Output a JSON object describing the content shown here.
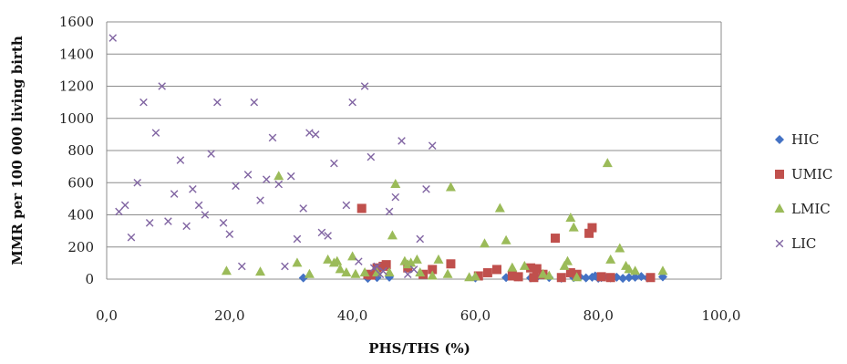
{
  "chart_data": {
    "type": "scatter",
    "title": "",
    "xlabel": "PHS/THS (%)",
    "ylabel": "MMR per 100 000 living birth",
    "xlim": [
      0,
      100
    ],
    "ylim": [
      0,
      1600
    ],
    "xticks": [
      "0,0",
      "20,0",
      "40,0",
      "60,0",
      "80,0",
      "100,0"
    ],
    "yticks": [
      "0",
      "200",
      "400",
      "600",
      "800",
      "1000",
      "1200",
      "1400",
      "1600"
    ],
    "grid": "horizontal",
    "legend_position": "right",
    "series": [
      {
        "name": "HIC",
        "color": "#4472C4",
        "marker": "diamond",
        "points": [
          [
            32,
            8
          ],
          [
            42.5,
            5
          ],
          [
            44,
            10
          ],
          [
            46,
            12
          ],
          [
            60,
            8
          ],
          [
            65,
            10
          ],
          [
            67,
            15
          ],
          [
            69,
            8
          ],
          [
            70,
            12
          ],
          [
            72,
            10
          ],
          [
            74,
            6
          ],
          [
            76,
            10
          ],
          [
            77,
            15
          ],
          [
            78,
            8
          ],
          [
            79,
            12
          ],
          [
            79.5,
            20
          ],
          [
            80,
            6
          ],
          [
            80.5,
            10
          ],
          [
            81,
            14
          ],
          [
            82,
            8
          ],
          [
            83,
            12
          ],
          [
            84,
            5
          ],
          [
            85,
            10
          ],
          [
            86,
            12
          ],
          [
            87,
            16
          ],
          [
            88,
            8
          ],
          [
            90.5,
            14
          ]
        ]
      },
      {
        "name": "UMIC",
        "color": "#C0504D",
        "marker": "square",
        "points": [
          [
            41.5,
            440
          ],
          [
            42.5,
            30
          ],
          [
            43,
            25
          ],
          [
            44,
            70
          ],
          [
            45,
            80
          ],
          [
            45.5,
            90
          ],
          [
            49,
            70
          ],
          [
            51.5,
            30
          ],
          [
            53,
            60
          ],
          [
            56,
            95
          ],
          [
            60.5,
            20
          ],
          [
            62,
            40
          ],
          [
            63.5,
            60
          ],
          [
            66,
            20
          ],
          [
            67,
            15
          ],
          [
            69,
            70
          ],
          [
            69.5,
            10
          ],
          [
            70,
            65
          ],
          [
            71,
            30
          ],
          [
            73,
            255
          ],
          [
            74,
            10
          ],
          [
            75.5,
            40
          ],
          [
            76.5,
            30
          ],
          [
            78.5,
            285
          ],
          [
            79,
            320
          ],
          [
            80.5,
            15
          ],
          [
            82,
            10
          ],
          [
            88.5,
            10
          ]
        ]
      },
      {
        "name": "LMIC",
        "color": "#9BBB59",
        "marker": "triangle",
        "points": [
          [
            19.5,
            50
          ],
          [
            25,
            45
          ],
          [
            28,
            640
          ],
          [
            31,
            100
          ],
          [
            33,
            30
          ],
          [
            36,
            120
          ],
          [
            37,
            100
          ],
          [
            37.5,
            110
          ],
          [
            38,
            60
          ],
          [
            39,
            40
          ],
          [
            40,
            140
          ],
          [
            40.5,
            30
          ],
          [
            42,
            40
          ],
          [
            44,
            40
          ],
          [
            46,
            40
          ],
          [
            46.5,
            270
          ],
          [
            47,
            590
          ],
          [
            48.5,
            110
          ],
          [
            49,
            90
          ],
          [
            49.5,
            100
          ],
          [
            50.5,
            120
          ],
          [
            51,
            40
          ],
          [
            53,
            20
          ],
          [
            54,
            120
          ],
          [
            55.5,
            30
          ],
          [
            56,
            570
          ],
          [
            59,
            10
          ],
          [
            60,
            15
          ],
          [
            61.5,
            220
          ],
          [
            64,
            440
          ],
          [
            65,
            240
          ],
          [
            66,
            70
          ],
          [
            68,
            80
          ],
          [
            71,
            30
          ],
          [
            72,
            20
          ],
          [
            74.5,
            80
          ],
          [
            75,
            110
          ],
          [
            75.5,
            380
          ],
          [
            76,
            320
          ],
          [
            76.5,
            10
          ],
          [
            81.5,
            720
          ],
          [
            82,
            120
          ],
          [
            83.5,
            190
          ],
          [
            84.5,
            80
          ],
          [
            85,
            60
          ],
          [
            86,
            50
          ],
          [
            90.5,
            50
          ]
        ]
      },
      {
        "name": "LIC",
        "color": "#8064A2",
        "marker": "x",
        "points": [
          [
            1,
            1500
          ],
          [
            2,
            420
          ],
          [
            3,
            460
          ],
          [
            4,
            260
          ],
          [
            5,
            600
          ],
          [
            6,
            1100
          ],
          [
            7,
            350
          ],
          [
            8,
            910
          ],
          [
            9,
            1200
          ],
          [
            10,
            360
          ],
          [
            11,
            530
          ],
          [
            12,
            740
          ],
          [
            13,
            330
          ],
          [
            14,
            560
          ],
          [
            15,
            460
          ],
          [
            16,
            400
          ],
          [
            17,
            780
          ],
          [
            18,
            1100
          ],
          [
            19,
            350
          ],
          [
            20,
            280
          ],
          [
            21,
            580
          ],
          [
            22,
            80
          ],
          [
            23,
            650
          ],
          [
            24,
            1100
          ],
          [
            25,
            490
          ],
          [
            26,
            620
          ],
          [
            27,
            880
          ],
          [
            28,
            590
          ],
          [
            29,
            80
          ],
          [
            30,
            640
          ],
          [
            31,
            250
          ],
          [
            32,
            440
          ],
          [
            33,
            910
          ],
          [
            34,
            900
          ],
          [
            35,
            290
          ],
          [
            36,
            270
          ],
          [
            37,
            720
          ],
          [
            39,
            460
          ],
          [
            40,
            1100
          ],
          [
            41,
            110
          ],
          [
            42,
            1200
          ],
          [
            43,
            760
          ],
          [
            44,
            80
          ],
          [
            45,
            50
          ],
          [
            46,
            420
          ],
          [
            47,
            510
          ],
          [
            48,
            860
          ],
          [
            49,
            30
          ],
          [
            50,
            60
          ],
          [
            51,
            250
          ],
          [
            52,
            560
          ],
          [
            53,
            830
          ],
          [
            43.5,
            70
          ],
          [
            44.5,
            30
          ]
        ]
      }
    ]
  }
}
